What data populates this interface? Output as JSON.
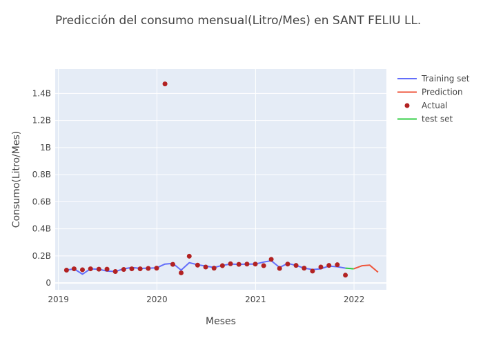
{
  "chart_data": {
    "type": "line",
    "title": "Predicción del consumo mensual(Litro/Mes) en SANT FELIU LL.",
    "xlabel": "Meses",
    "ylabel": "Consumo(Litro/Mes)",
    "ylim": [
      -0.05,
      1.58
    ],
    "xlim": [
      "2018-12-20",
      "2022-05-01"
    ],
    "grid": true,
    "legend_position": "top-right",
    "x_ticks": [
      "2019",
      "2020",
      "2021",
      "2022"
    ],
    "x_tick_dates": [
      "2019-01-01",
      "2020-01-01",
      "2021-01-01",
      "2022-01-01"
    ],
    "y_ticks": [
      "0",
      "0.2B",
      "0.4B",
      "0.6B",
      "0.8B",
      "1B",
      "1.2B",
      "1.4B"
    ],
    "y_tick_values": [
      0,
      0.2,
      0.4,
      0.6,
      0.8,
      1.0,
      1.2,
      1.4
    ],
    "y_unit_note": "values in billions (B)",
    "colors": {
      "training": "#636efa",
      "prediction": "#ef553b",
      "actual": "#b22222",
      "test": "#2ecc40",
      "plot_bg": "#e5ecf6",
      "grid": "#ffffff"
    },
    "series": [
      {
        "name": "Training set",
        "kind": "line",
        "color": "#636efa",
        "x": [
          "2019-01-31",
          "2019-02-28",
          "2019-03-31",
          "2019-04-30",
          "2019-05-31",
          "2019-06-30",
          "2019-07-31",
          "2019-08-31",
          "2019-09-30",
          "2019-10-31",
          "2019-11-30",
          "2019-12-31",
          "2020-01-31",
          "2020-02-29",
          "2020-03-31",
          "2020-04-30",
          "2020-05-31",
          "2020-06-30",
          "2020-07-31",
          "2020-08-31",
          "2020-09-30",
          "2020-10-31",
          "2020-11-30",
          "2020-12-31",
          "2021-01-31",
          "2021-02-28",
          "2021-03-31",
          "2021-04-30",
          "2021-05-31",
          "2021-06-30",
          "2021-07-31",
          "2021-08-31",
          "2021-09-30",
          "2021-10-31",
          "2021-11-30"
        ],
        "y": [
          0.095,
          0.105,
          0.065,
          0.105,
          0.102,
          0.088,
          0.085,
          0.105,
          0.115,
          0.108,
          0.11,
          0.112,
          0.14,
          0.145,
          0.095,
          0.15,
          0.135,
          0.125,
          0.115,
          0.13,
          0.14,
          0.138,
          0.14,
          0.14,
          0.155,
          0.165,
          0.115,
          0.145,
          0.13,
          0.11,
          0.1,
          0.105,
          0.125,
          0.12,
          0.11
        ]
      },
      {
        "name": "test set",
        "kind": "line",
        "color": "#2ecc40",
        "x": [
          "2021-11-30",
          "2021-12-31"
        ],
        "y": [
          0.11,
          0.105
        ]
      },
      {
        "name": "Prediction",
        "kind": "line",
        "color": "#ef553b",
        "x": [
          "2021-12-31",
          "2022-01-31",
          "2022-02-28",
          "2022-03-31"
        ],
        "y": [
          0.105,
          0.128,
          0.132,
          0.08
        ]
      },
      {
        "name": "Actual",
        "kind": "markers",
        "color": "#b22222",
        "x": [
          "2019-01-31",
          "2019-02-28",
          "2019-03-31",
          "2019-04-30",
          "2019-05-31",
          "2019-06-30",
          "2019-07-31",
          "2019-08-31",
          "2019-09-30",
          "2019-10-31",
          "2019-11-30",
          "2019-12-31",
          "2020-01-31",
          "2020-02-29",
          "2020-03-31",
          "2020-04-30",
          "2020-05-31",
          "2020-06-30",
          "2020-07-31",
          "2020-08-31",
          "2020-09-30",
          "2020-10-31",
          "2020-11-30",
          "2020-12-31",
          "2021-01-31",
          "2021-02-28",
          "2021-03-31",
          "2021-04-30",
          "2021-05-31",
          "2021-06-30",
          "2021-07-31",
          "2021-08-31",
          "2021-09-30",
          "2021-10-31",
          "2021-11-30"
        ],
        "y": [
          0.095,
          0.105,
          0.098,
          0.105,
          0.102,
          0.102,
          0.085,
          0.1,
          0.105,
          0.105,
          0.108,
          0.11,
          1.47,
          0.138,
          0.075,
          0.198,
          0.132,
          0.118,
          0.11,
          0.128,
          0.142,
          0.138,
          0.14,
          0.14,
          0.128,
          0.175,
          0.108,
          0.14,
          0.13,
          0.11,
          0.088,
          0.118,
          0.13,
          0.135,
          0.058
        ]
      }
    ],
    "legend": [
      {
        "label": "Training set",
        "symbol": "line",
        "color": "#636efa"
      },
      {
        "label": "Prediction",
        "symbol": "line",
        "color": "#ef553b"
      },
      {
        "label": "Actual",
        "symbol": "marker",
        "color": "#b22222"
      },
      {
        "label": "test set",
        "symbol": "line",
        "color": "#2ecc40"
      }
    ]
  }
}
